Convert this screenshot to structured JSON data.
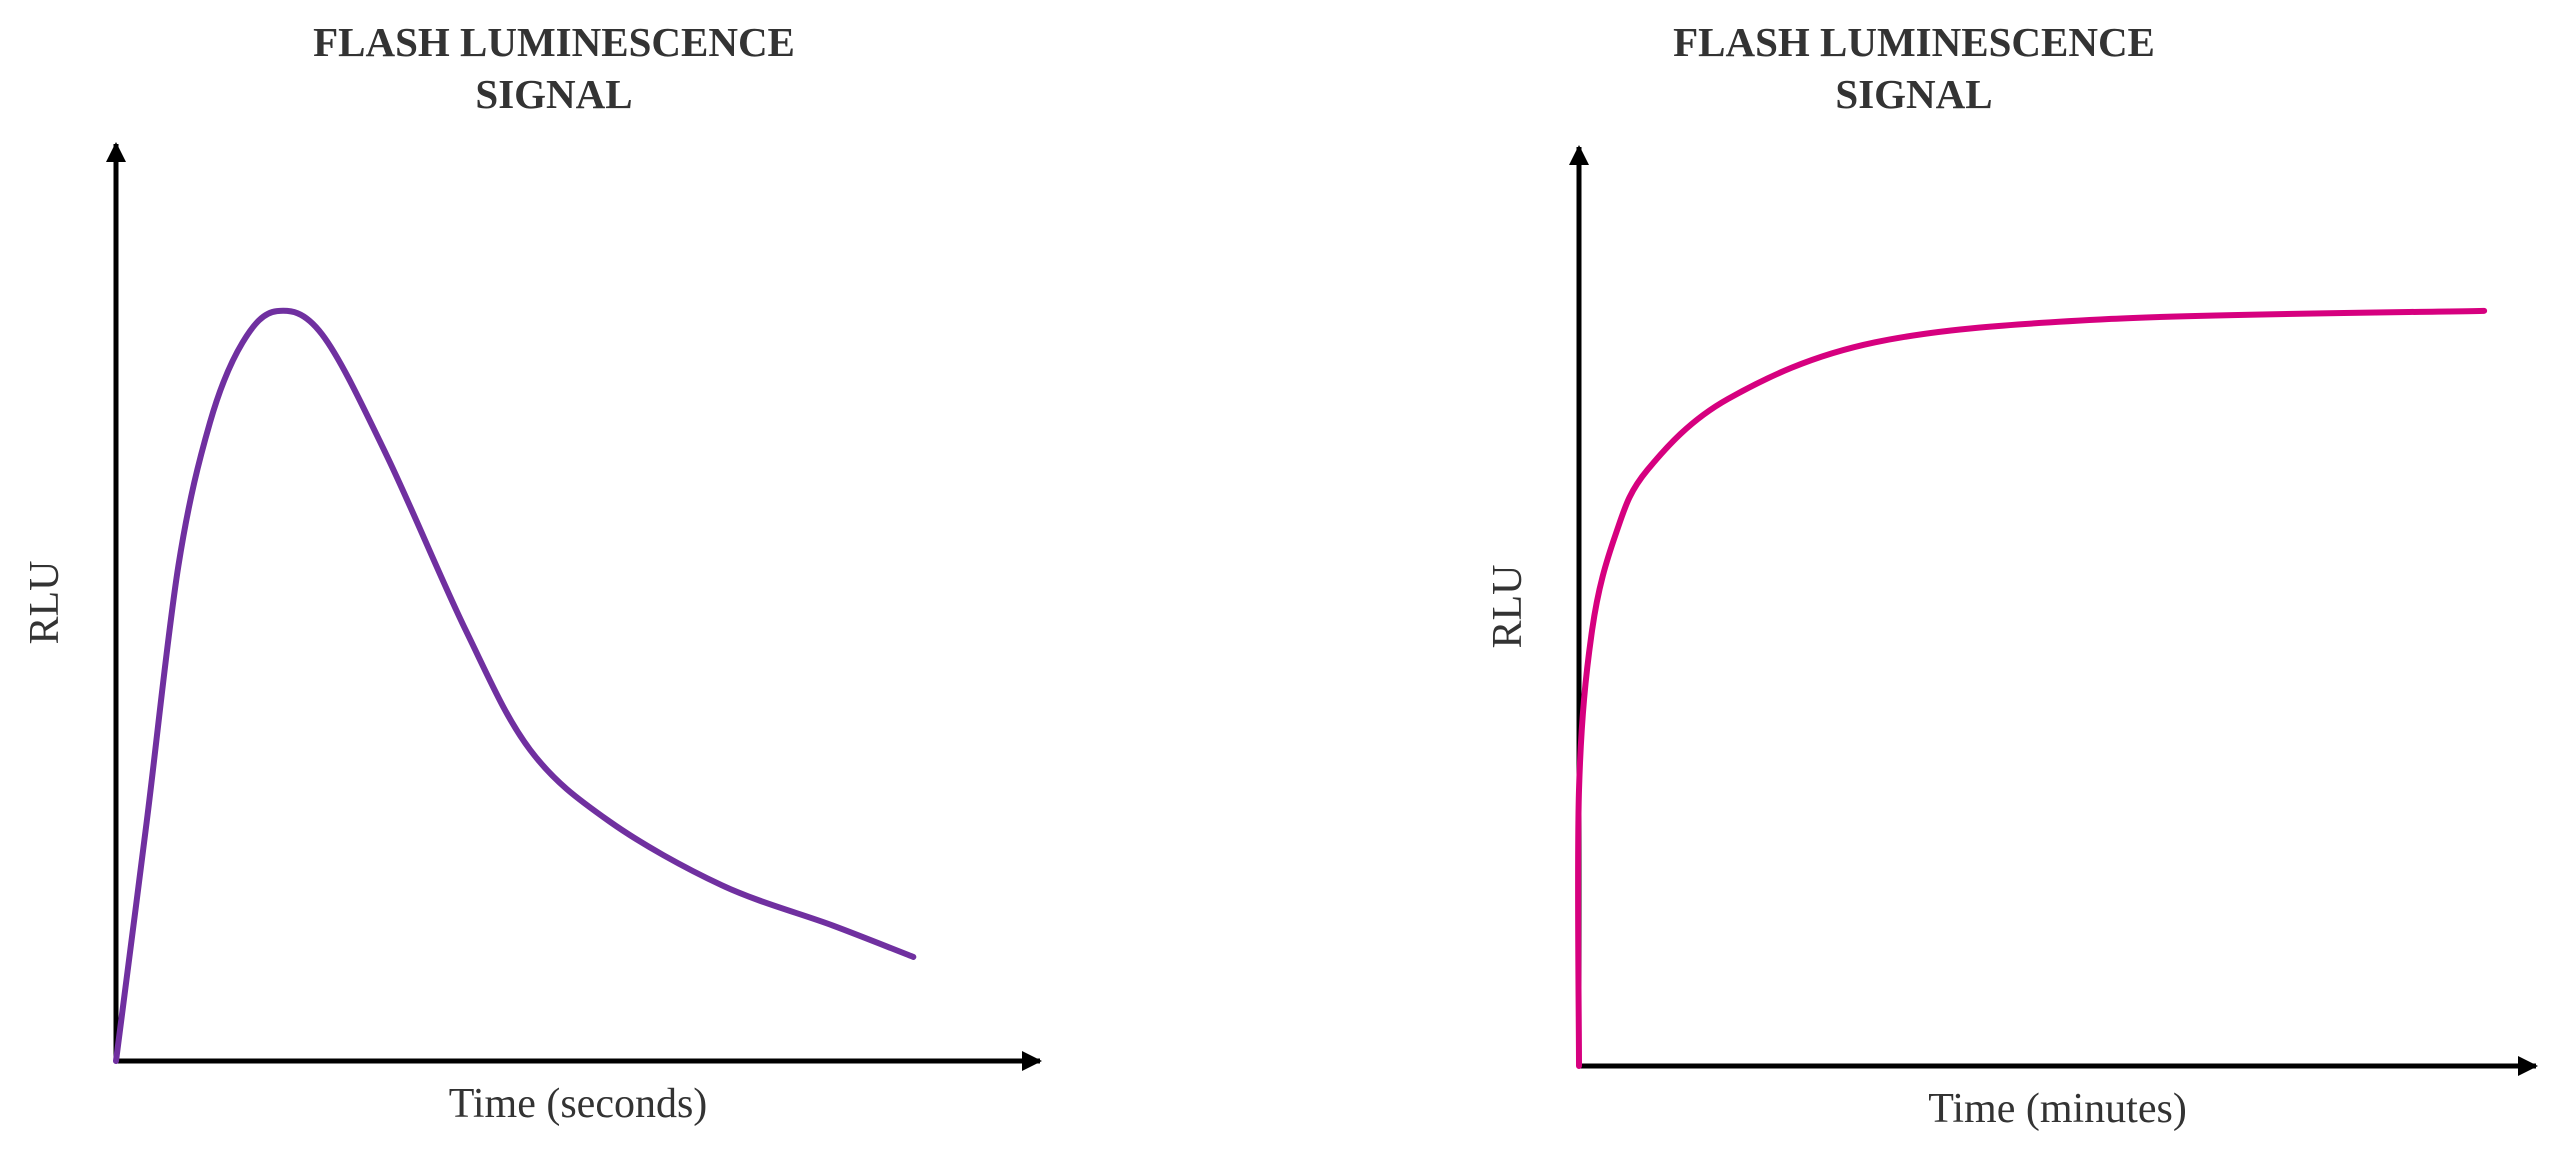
{
  "chart_data": [
    {
      "type": "line",
      "title": "FLASH LUMINESCENCE SIGNAL",
      "x_label": "Time (seconds)",
      "y_label": "RLU",
      "x": [
        0,
        3.4,
        6.9,
        10.4,
        14.0,
        17.8,
        22.8,
        29.9,
        38.7,
        45.8,
        54.6,
        67.0,
        79.3,
        88.2
      ],
      "values": [
        0,
        26.7,
        55.2,
        71.2,
        80.1,
        83.6,
        81.0,
        67.6,
        48.0,
        34.7,
        26.7,
        19.6,
        15.1,
        11.6
      ],
      "color": "#7030a0",
      "xlim": [
        0,
        100
      ],
      "ylim": [
        0,
        100
      ]
    },
    {
      "type": "line",
      "title": "FLASH LUMINESCENCE SIGNAL",
      "x_label": "Time (minutes)",
      "y_label": "RLU",
      "x": [
        0,
        0,
        1.4,
        3.9,
        7.3,
        15.9,
        31.6,
        56.8,
        96.6
      ],
      "values": [
        0,
        30.7,
        48.5,
        59.1,
        66.3,
        74.2,
        80.5,
        83.1,
        84.0
      ],
      "color": "#d6007f",
      "xlim": [
        0,
        100
      ],
      "ylim": [
        0,
        100
      ]
    }
  ]
}
